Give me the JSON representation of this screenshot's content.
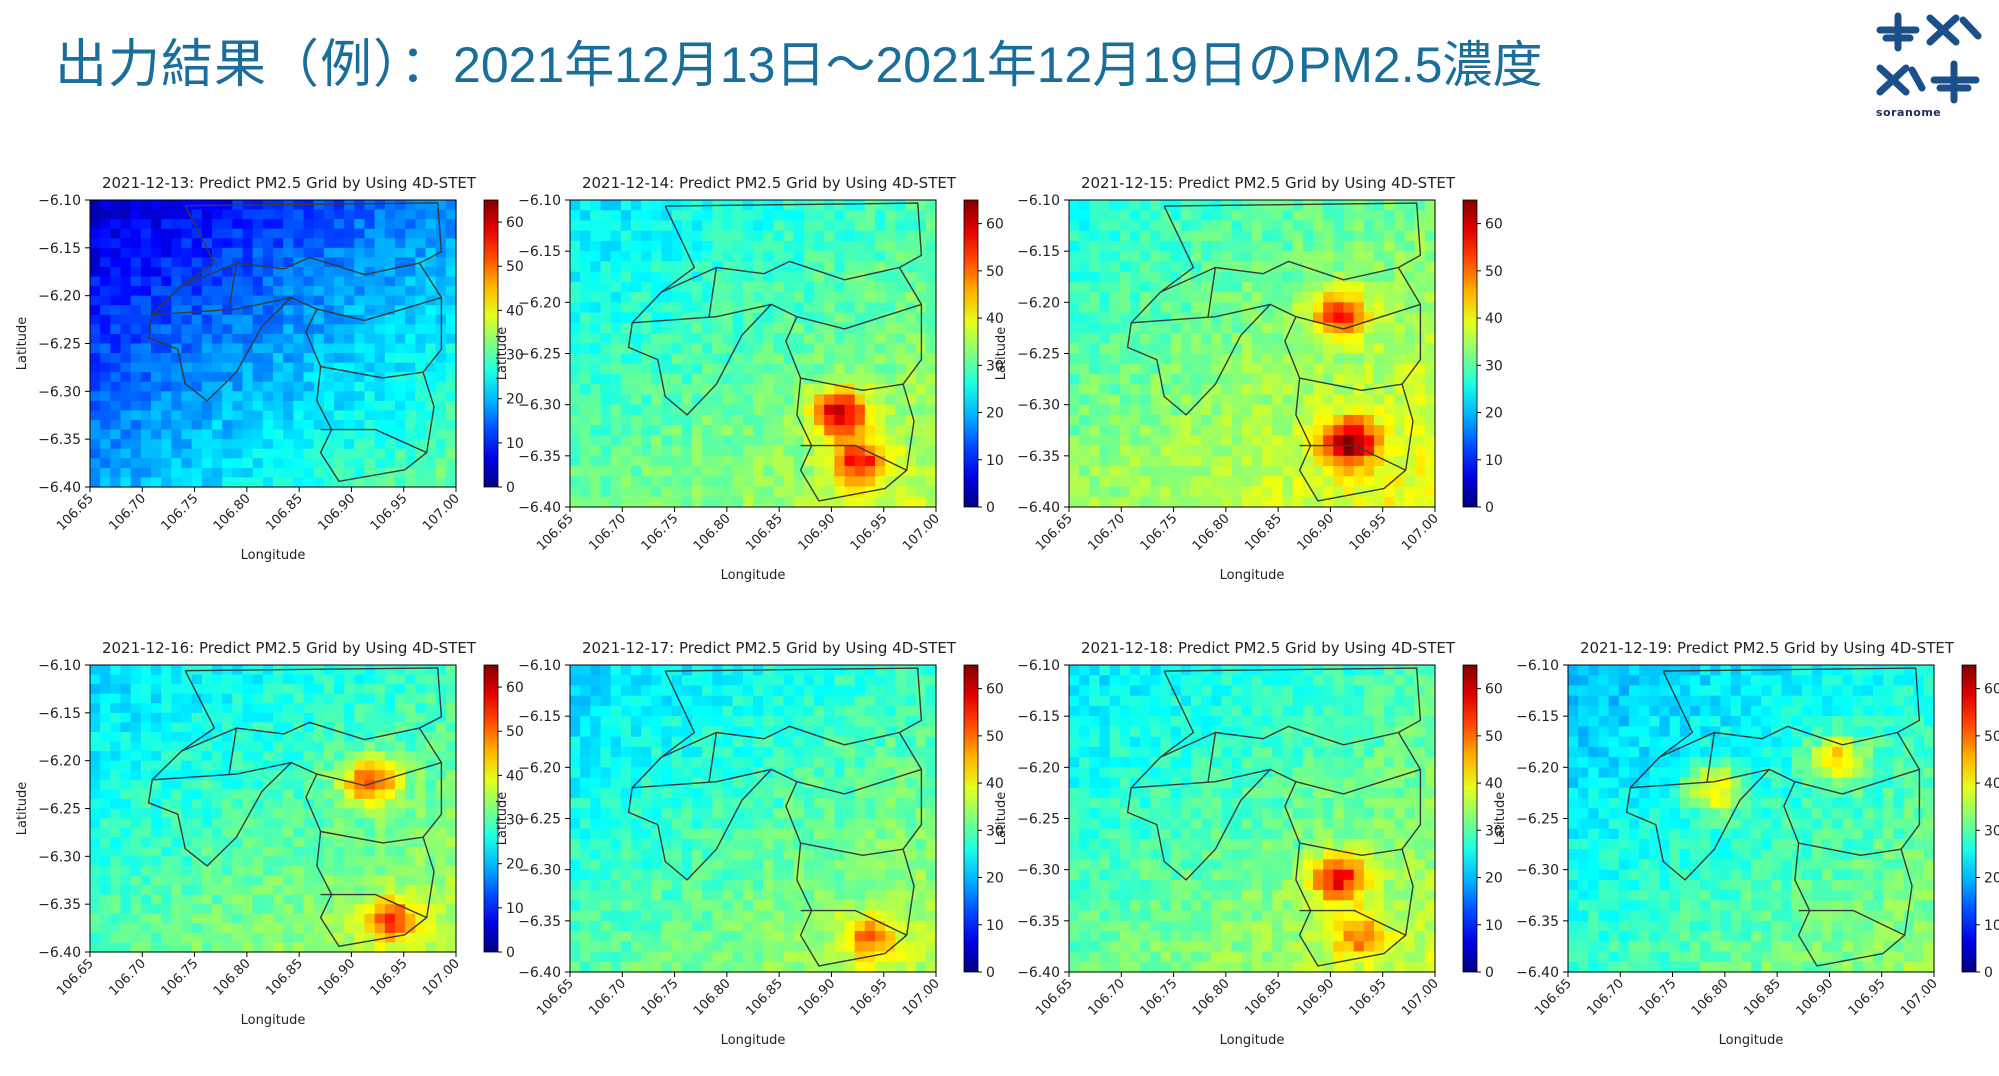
{
  "header": {
    "title_jp": "出力結果（例）：",
    "title_range": "2021年12月13日～2021年12月19日のPM2.5濃度",
    "logo_text": "soranome",
    "brand_color": "#1a6e9a"
  },
  "chart_data": [
    {
      "type": "heatmap",
      "title": "2021-12-13: Predict PM2.5 Grid by Using 4D-STET",
      "date": "2021-12-13",
      "xlabel": "Longitude",
      "ylabel": "Latitude",
      "xlim": [
        106.65,
        107.0
      ],
      "ylim": [
        -6.4,
        -6.1
      ],
      "xticks": [
        "106.65",
        "106.70",
        "106.75",
        "106.80",
        "106.85",
        "106.90",
        "106.95",
        "107.00"
      ],
      "yticks": [
        "-6.10",
        "-6.15",
        "-6.20",
        "-6.25",
        "-6.30",
        "-6.35",
        "-6.40"
      ],
      "colorbar": {
        "min": 0,
        "max": 65,
        "ticks": [
          "0",
          "10",
          "20",
          "30",
          "40",
          "50",
          "60"
        ],
        "colormap": "jet"
      },
      "mean_level": 18,
      "hotspots": []
    },
    {
      "type": "heatmap",
      "title": "2021-12-14: Predict PM2.5 Grid by Using 4D-STET",
      "date": "2021-12-14",
      "xlabel": "Longitude",
      "ylabel": "Latitude",
      "xlim": [
        106.65,
        107.0
      ],
      "ylim": [
        -6.4,
        -6.1
      ],
      "xticks": [
        "106.65",
        "106.70",
        "106.75",
        "106.80",
        "106.85",
        "106.90",
        "106.95",
        "107.00"
      ],
      "yticks": [
        "-6.10",
        "-6.15",
        "-6.20",
        "-6.25",
        "-6.30",
        "-6.35",
        "-6.40"
      ],
      "colorbar": {
        "min": 0,
        "max": 65,
        "ticks": [
          "0",
          "10",
          "20",
          "30",
          "40",
          "50",
          "60"
        ],
        "colormap": "jet"
      },
      "mean_level": 30,
      "hotspots": [
        {
          "lon": 106.93,
          "lat": -6.36,
          "value": 52
        },
        {
          "lon": 106.91,
          "lat": -6.31,
          "value": 58
        }
      ]
    },
    {
      "type": "heatmap",
      "title": "2021-12-15: Predict PM2.5 Grid by Using 4D-STET",
      "date": "2021-12-15",
      "xlabel": "Longitude",
      "ylabel": "Latitude",
      "xlim": [
        106.65,
        107.0
      ],
      "ylim": [
        -6.4,
        -6.1
      ],
      "xticks": [
        "106.65",
        "106.70",
        "106.75",
        "106.80",
        "106.85",
        "106.90",
        "106.95",
        "107.00"
      ],
      "yticks": [
        "-6.10",
        "-6.15",
        "-6.20",
        "-6.25",
        "-6.30",
        "-6.35",
        "-6.40"
      ],
      "colorbar": {
        "min": 0,
        "max": 65,
        "ticks": [
          "0",
          "10",
          "20",
          "30",
          "40",
          "50",
          "60"
        ],
        "colormap": "jet"
      },
      "mean_level": 33,
      "hotspots": [
        {
          "lon": 106.92,
          "lat": -6.34,
          "value": 62
        },
        {
          "lon": 106.91,
          "lat": -6.21,
          "value": 55
        }
      ]
    },
    {
      "type": "heatmap",
      "title": "2021-12-16: Predict PM2.5 Grid by Using 4D-STET",
      "date": "2021-12-16",
      "xlabel": "Longitude",
      "ylabel": "Latitude",
      "xlim": [
        106.65,
        107.0
      ],
      "ylim": [
        -6.4,
        -6.1
      ],
      "xticks": [
        "106.65",
        "106.70",
        "106.75",
        "106.80",
        "106.85",
        "106.90",
        "106.95",
        "107.00"
      ],
      "yticks": [
        "-6.10",
        "-6.15",
        "-6.20",
        "-6.25",
        "-6.30",
        "-6.35",
        "-6.40"
      ],
      "colorbar": {
        "min": 0,
        "max": 65,
        "ticks": [
          "0",
          "10",
          "20",
          "30",
          "40",
          "50",
          "60"
        ],
        "colormap": "jet"
      },
      "mean_level": 29,
      "hotspots": [
        {
          "lon": 106.94,
          "lat": -6.37,
          "value": 48
        },
        {
          "lon": 106.92,
          "lat": -6.22,
          "value": 52
        }
      ]
    },
    {
      "type": "heatmap",
      "title": "2021-12-17: Predict PM2.5 Grid by Using 4D-STET",
      "date": "2021-12-17",
      "xlabel": "Longitude",
      "ylabel": "Latitude",
      "xlim": [
        106.65,
        107.0
      ],
      "ylim": [
        -6.4,
        -6.1
      ],
      "xticks": [
        "106.65",
        "106.70",
        "106.75",
        "106.80",
        "106.85",
        "106.90",
        "106.95",
        "107.00"
      ],
      "yticks": [
        "-6.10",
        "-6.15",
        "-6.20",
        "-6.25",
        "-6.30",
        "-6.35",
        "-6.40"
      ],
      "colorbar": {
        "min": 0,
        "max": 65,
        "ticks": [
          "0",
          "10",
          "20",
          "30",
          "40",
          "50",
          "60"
        ],
        "colormap": "jet"
      },
      "mean_level": 29,
      "hotspots": [
        {
          "lon": 106.94,
          "lat": -6.37,
          "value": 45
        }
      ]
    },
    {
      "type": "heatmap",
      "title": "2021-12-18: Predict PM2.5 Grid by Using 4D-STET",
      "date": "2021-12-18",
      "xlabel": "Longitude",
      "ylabel": "Latitude",
      "xlim": [
        106.65,
        107.0
      ],
      "ylim": [
        -6.4,
        -6.1
      ],
      "xticks": [
        "106.65",
        "106.70",
        "106.75",
        "106.80",
        "106.85",
        "106.90",
        "106.95",
        "107.00"
      ],
      "yticks": [
        "-6.10",
        "-6.15",
        "-6.20",
        "-6.25",
        "-6.30",
        "-6.35",
        "-6.40"
      ],
      "colorbar": {
        "min": 0,
        "max": 65,
        "ticks": [
          "0",
          "10",
          "20",
          "30",
          "40",
          "50",
          "60"
        ],
        "colormap": "jet"
      },
      "mean_level": 30,
      "hotspots": [
        {
          "lon": 106.91,
          "lat": -6.31,
          "value": 55
        },
        {
          "lon": 106.93,
          "lat": -6.37,
          "value": 44
        }
      ]
    },
    {
      "type": "heatmap",
      "title": "2021-12-19: Predict PM2.5 Grid by Using 4D-STET",
      "date": "2021-12-19",
      "xlabel": "Longitude",
      "ylabel": "Latitude",
      "xlim": [
        106.65,
        107.0
      ],
      "ylim": [
        -6.4,
        -6.1
      ],
      "xticks": [
        "106.65",
        "106.70",
        "106.75",
        "106.80",
        "106.85",
        "106.90",
        "106.95",
        "107.00"
      ],
      "yticks": [
        "-6.10",
        "-6.15",
        "-6.20",
        "-6.25",
        "-6.30",
        "-6.35",
        "-6.40"
      ],
      "colorbar": {
        "min": 0,
        "max": 65,
        "ticks": [
          "0",
          "10",
          "20",
          "30",
          "40",
          "50",
          "60"
        ],
        "colormap": "jet"
      },
      "mean_level": 27,
      "hotspots": [
        {
          "lon": 106.91,
          "lat": -6.19,
          "value": 45
        },
        {
          "lon": 106.79,
          "lat": -6.22,
          "value": 44
        }
      ]
    }
  ]
}
